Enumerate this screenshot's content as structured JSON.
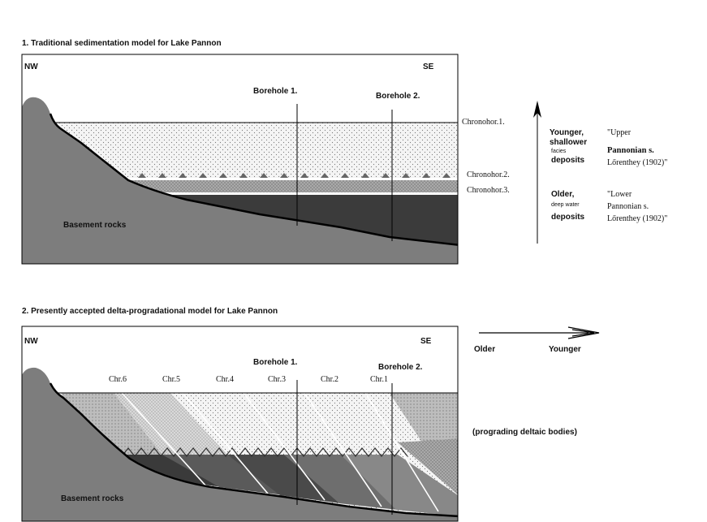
{
  "panel1": {
    "title": "1. Traditional sedimentation model for Lake Pannon",
    "nw": "NW",
    "se": "SE",
    "borehole1": "Borehole 1.",
    "borehole2": "Borehole 2.",
    "basement": "Basement rocks",
    "chronohor1": "Chronohor.1.",
    "chronohor2": "Chronohor.2.",
    "chronohor3": "Chronohor.3.",
    "younger": "Younger,",
    "shallower": "shallower",
    "facies": "facies",
    "deposits_top": "deposits",
    "older": "Older,",
    "deep_water": "deep water",
    "deposits_bottom": "deposits",
    "upper_1": "\"Upper",
    "upper_2": "Pannonian s.",
    "upper_3": "Lőrenthey (1902)\"",
    "lower_1": "\"Lower",
    "lower_2": "Pannonian s.",
    "lower_3": "Lőrenthey (1902)\""
  },
  "panel2": {
    "title": "2. Presently accepted delta-progradational model for Lake Pannon",
    "nw": "NW",
    "se": "SE",
    "borehole1": "Borehole 1.",
    "borehole2": "Borehole 2.",
    "basement": "Basement rocks",
    "chr": [
      "Chr.6",
      "Chr.5",
      "Chr.4",
      "Chr.3",
      "Chr.2",
      "Chr.1"
    ],
    "arrow_older": "Older",
    "arrow_younger": "Younger",
    "prograding": "(prograding deltaic bodies)"
  },
  "colors": {
    "basement": "#7a7a7a",
    "dark_layer": "#3a3a3a",
    "mid_layer": "#8c8c8c",
    "light_layer": "#c8c8c8",
    "dotted_fill": "#ececec",
    "outline": "#000000"
  }
}
